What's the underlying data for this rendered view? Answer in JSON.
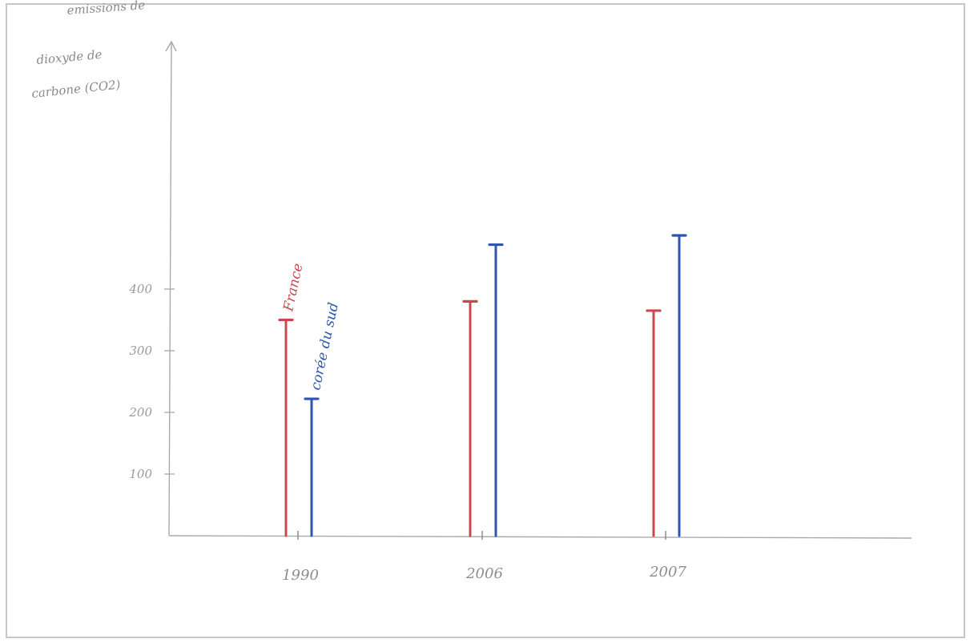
{
  "chart_data": {
    "type": "bar",
    "ylabel_lines": [
      "emissions de",
      "dioxyde de",
      "carbone (CO2)"
    ],
    "categories": [
      "1990",
      "2006",
      "2007"
    ],
    "y_ticks": [
      {
        "value": 100,
        "label": "100"
      },
      {
        "value": 200,
        "label": "200"
      },
      {
        "value": 300,
        "label": "300"
      },
      {
        "value": 400,
        "label": "400"
      }
    ],
    "ylim": [
      0,
      600
    ],
    "grid": false,
    "series": [
      {
        "name": "France",
        "color": "#c9474f",
        "values": [
          350,
          380,
          365
        ]
      },
      {
        "name": "corée du sud",
        "color": "#2f55b0",
        "values": [
          222,
          472,
          487
        ]
      }
    ]
  }
}
